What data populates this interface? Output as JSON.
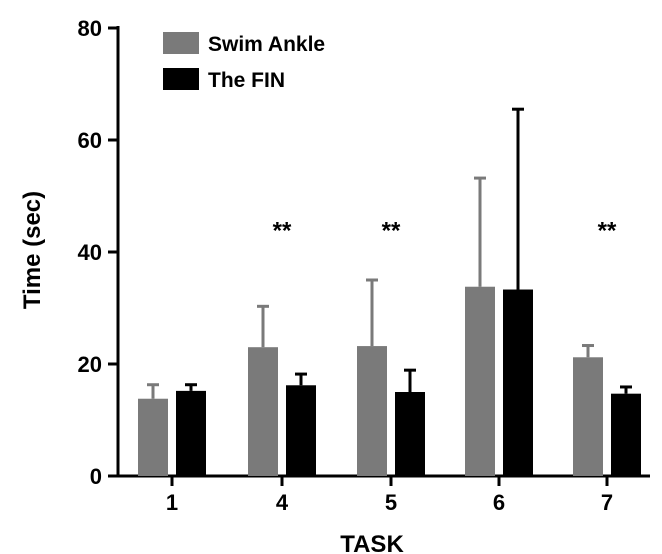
{
  "chart_data": {
    "type": "bar",
    "categories": [
      "1",
      "4",
      "5",
      "6",
      "7"
    ],
    "series": [
      {
        "name": "Swim Ankle",
        "color": "#7a7a7a",
        "values": [
          13.8,
          23.0,
          23.2,
          33.8,
          21.2
        ],
        "error_upper": [
          16.3,
          30.3,
          35.0,
          53.2,
          23.3
        ]
      },
      {
        "name": "The FIN",
        "color": "#000000",
        "values": [
          15.2,
          16.2,
          15.0,
          33.3,
          14.7
        ],
        "error_upper": [
          16.3,
          18.2,
          18.9,
          65.5,
          15.9
        ]
      }
    ],
    "xlabel": "TASK",
    "ylabel": "Time (sec)",
    "ylim": [
      0,
      80
    ],
    "yticks": [
      0,
      20,
      40,
      60,
      80
    ],
    "yticklabels": [
      "0",
      "20",
      "40",
      "60",
      "80"
    ],
    "grid": false,
    "legend_position": "top-left",
    "annotations": [
      {
        "category": "4",
        "text": "**",
        "y": 46
      },
      {
        "category": "5",
        "text": "**",
        "y": 46
      },
      {
        "category": "7",
        "text": "**",
        "y": 46
      }
    ]
  }
}
